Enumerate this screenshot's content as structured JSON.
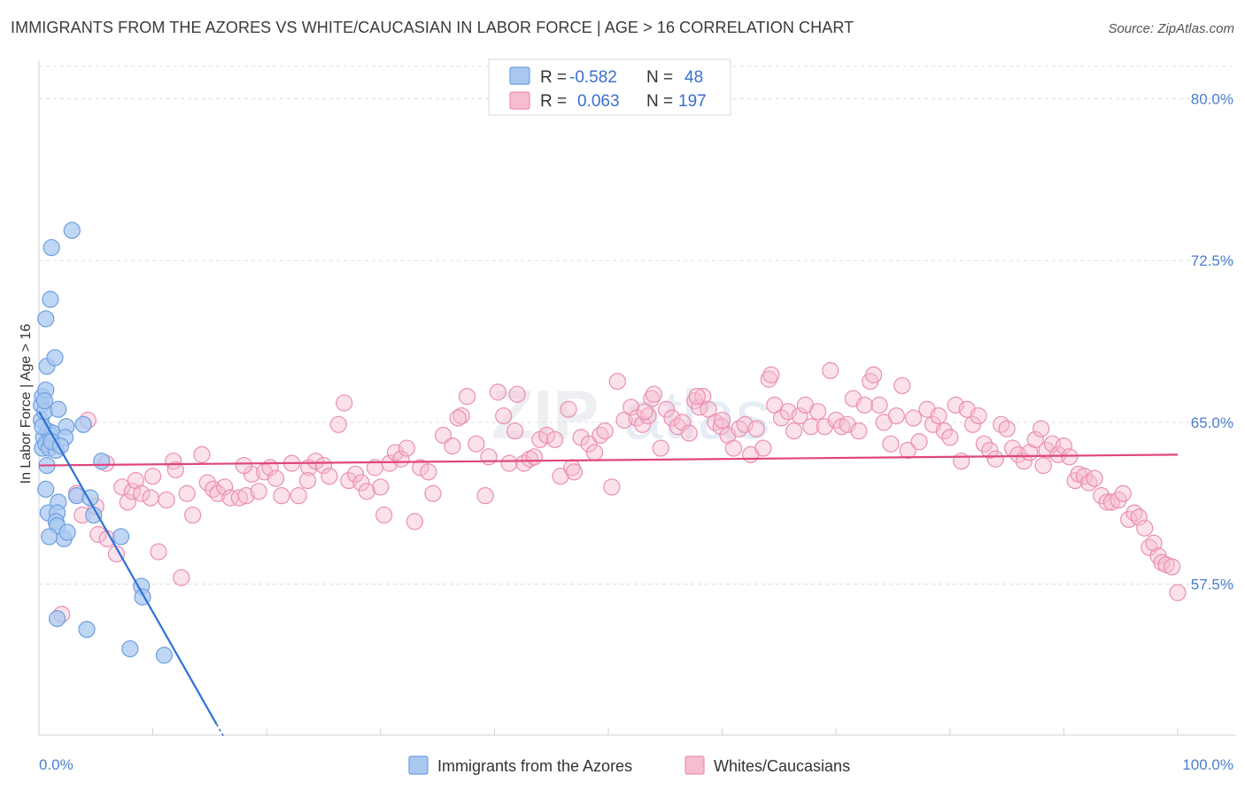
{
  "header": {
    "title": "IMMIGRANTS FROM THE AZORES VS WHITE/CAUCASIAN IN LABOR FORCE | AGE > 16 CORRELATION CHART",
    "source": "Source: ZipAtlas.com"
  },
  "watermark": {
    "zip": "ZIP",
    "atlas": "atlas"
  },
  "colors": {
    "blue_fill": "#a9c8f0",
    "blue_stroke": "#6d9fe0",
    "blue_line": "#2f6fd6",
    "pink_fill": "#f7bcd0",
    "pink_stroke": "#ea8fb0",
    "pink_line": "#e0457b",
    "grid": "#d9dde3",
    "axis_text": "#4a7fd0"
  },
  "chart_data": {
    "type": "scatter",
    "title": "IMMIGRANTS FROM THE AZORES VS WHITE/CAUCASIAN IN LABOR FORCE | AGE > 16 CORRELATION CHART",
    "ylabel": "In Labor Force | Age > 16",
    "xlim": [
      0,
      100
    ],
    "ylim": [
      50.5,
      81.5
    ],
    "x_tick_labels": [
      "0.0%",
      "100.0%"
    ],
    "y_ticks": [
      57.5,
      65.0,
      72.5,
      80.0
    ],
    "y_tick_labels": [
      "57.5%",
      "65.0%",
      "72.5%",
      "80.0%"
    ],
    "legend": {
      "rows": [
        {
          "r_label": "R =",
          "r": "-0.582",
          "n_label": "N =",
          "n": "48"
        },
        {
          "r_label": "R =",
          "r": "0.063",
          "n_label": "N =",
          "n": "197"
        }
      ]
    },
    "series": [
      {
        "name": "Immigrants from the Azores",
        "trend": {
          "x": [
            0.0,
            15.6
          ],
          "y": [
            65.5,
            51.0
          ],
          "dash_to_x": 16.2
        },
        "points": [
          [
            0.2,
            65.8
          ],
          [
            0.3,
            66.2
          ],
          [
            0.2,
            65.1
          ],
          [
            0.4,
            64.3
          ],
          [
            0.3,
            63.8
          ],
          [
            0.5,
            65.5
          ],
          [
            0.8,
            64.6
          ],
          [
            0.6,
            64.0
          ],
          [
            1.0,
            64.4
          ],
          [
            0.9,
            63.8
          ],
          [
            1.2,
            64.5
          ],
          [
            1.5,
            63.7
          ],
          [
            0.7,
            63.0
          ],
          [
            0.6,
            66.5
          ],
          [
            0.5,
            66.0
          ],
          [
            0.7,
            67.6
          ],
          [
            0.6,
            69.8
          ],
          [
            1.4,
            68.0
          ],
          [
            1.0,
            70.7
          ],
          [
            1.1,
            73.1
          ],
          [
            2.9,
            73.9
          ],
          [
            1.7,
            65.6
          ],
          [
            2.4,
            64.8
          ],
          [
            2.3,
            64.3
          ],
          [
            3.9,
            64.9
          ],
          [
            5.5,
            63.2
          ],
          [
            0.6,
            61.9
          ],
          [
            0.8,
            60.8
          ],
          [
            1.7,
            61.3
          ],
          [
            1.6,
            60.8
          ],
          [
            1.5,
            60.4
          ],
          [
            1.6,
            60.2
          ],
          [
            2.2,
            59.6
          ],
          [
            2.5,
            59.9
          ],
          [
            0.9,
            59.7
          ],
          [
            3.3,
            61.6
          ],
          [
            4.5,
            61.5
          ],
          [
            4.8,
            60.7
          ],
          [
            7.2,
            59.7
          ],
          [
            9.0,
            57.4
          ],
          [
            9.1,
            56.9
          ],
          [
            1.6,
            55.9
          ],
          [
            4.2,
            55.4
          ],
          [
            8.0,
            54.5
          ],
          [
            11.0,
            54.2
          ],
          [
            0.3,
            64.8
          ],
          [
            1.1,
            64.1
          ],
          [
            1.9,
            63.9
          ]
        ]
      },
      {
        "name": "Whites/Caucasians",
        "trend": {
          "x": [
            0.0,
            100.0
          ],
          "y": [
            63.0,
            63.5
          ]
        },
        "points": [
          [
            2.0,
            56.1
          ],
          [
            3.3,
            61.7
          ],
          [
            3.8,
            60.7
          ],
          [
            4.3,
            65.1
          ],
          [
            5.0,
            61.1
          ],
          [
            5.2,
            59.8
          ],
          [
            5.9,
            63.1
          ],
          [
            6.0,
            59.6
          ],
          [
            6.8,
            58.9
          ],
          [
            7.3,
            62.0
          ],
          [
            7.8,
            61.3
          ],
          [
            8.2,
            61.8
          ],
          [
            8.5,
            62.3
          ],
          [
            9.0,
            61.7
          ],
          [
            9.8,
            61.5
          ],
          [
            10.5,
            59.0
          ],
          [
            11.2,
            61.4
          ],
          [
            11.8,
            63.2
          ],
          [
            12.5,
            57.8
          ],
          [
            13.0,
            61.7
          ],
          [
            13.5,
            60.7
          ],
          [
            14.3,
            63.5
          ],
          [
            14.8,
            62.2
          ],
          [
            15.3,
            61.9
          ],
          [
            15.7,
            61.7
          ],
          [
            16.3,
            62.0
          ],
          [
            16.8,
            61.5
          ],
          [
            17.6,
            61.5
          ],
          [
            18.2,
            61.6
          ],
          [
            18.7,
            62.6
          ],
          [
            19.3,
            61.8
          ],
          [
            19.8,
            62.7
          ],
          [
            20.3,
            62.9
          ],
          [
            20.8,
            62.4
          ],
          [
            21.3,
            61.6
          ],
          [
            22.2,
            63.1
          ],
          [
            22.8,
            61.6
          ],
          [
            23.7,
            62.9
          ],
          [
            24.3,
            63.2
          ],
          [
            25.0,
            63.0
          ],
          [
            25.5,
            62.5
          ],
          [
            26.3,
            64.9
          ],
          [
            26.8,
            65.9
          ],
          [
            27.2,
            62.3
          ],
          [
            27.8,
            62.6
          ],
          [
            28.3,
            62.2
          ],
          [
            28.8,
            61.8
          ],
          [
            29.5,
            62.9
          ],
          [
            30.3,
            60.7
          ],
          [
            30.8,
            63.1
          ],
          [
            31.3,
            63.6
          ],
          [
            31.8,
            63.3
          ],
          [
            32.3,
            63.8
          ],
          [
            33.0,
            60.4
          ],
          [
            33.5,
            62.9
          ],
          [
            34.2,
            62.7
          ],
          [
            34.6,
            61.7
          ],
          [
            35.5,
            64.4
          ],
          [
            36.3,
            63.9
          ],
          [
            37.1,
            65.3
          ],
          [
            37.6,
            66.2
          ],
          [
            38.4,
            64.0
          ],
          [
            39.2,
            61.6
          ],
          [
            39.5,
            63.4
          ],
          [
            40.3,
            66.4
          ],
          [
            40.8,
            65.3
          ],
          [
            41.3,
            63.1
          ],
          [
            41.8,
            64.6
          ],
          [
            42.6,
            63.1
          ],
          [
            43.1,
            63.3
          ],
          [
            43.5,
            63.4
          ],
          [
            44.0,
            64.2
          ],
          [
            44.6,
            64.4
          ],
          [
            45.3,
            64.2
          ],
          [
            45.8,
            62.5
          ],
          [
            46.5,
            65.6
          ],
          [
            46.8,
            62.9
          ],
          [
            47.0,
            62.7
          ],
          [
            47.6,
            64.3
          ],
          [
            48.3,
            64.0
          ],
          [
            48.8,
            63.6
          ],
          [
            49.3,
            64.4
          ],
          [
            49.7,
            64.6
          ],
          [
            50.3,
            62.0
          ],
          [
            50.8,
            66.9
          ],
          [
            51.4,
            65.1
          ],
          [
            52.0,
            65.7
          ],
          [
            52.5,
            65.2
          ],
          [
            53.0,
            64.9
          ],
          [
            53.5,
            65.3
          ],
          [
            53.8,
            66.1
          ],
          [
            54.0,
            66.3
          ],
          [
            54.6,
            63.8
          ],
          [
            55.1,
            65.6
          ],
          [
            55.6,
            65.2
          ],
          [
            56.1,
            64.8
          ],
          [
            56.5,
            65.0
          ],
          [
            57.1,
            64.5
          ],
          [
            57.6,
            66.0
          ],
          [
            58.0,
            65.7
          ],
          [
            58.3,
            66.2
          ],
          [
            58.8,
            65.6
          ],
          [
            59.4,
            65.0
          ],
          [
            59.9,
            64.8
          ],
          [
            60.5,
            64.4
          ],
          [
            61.0,
            63.8
          ],
          [
            61.5,
            64.7
          ],
          [
            62.0,
            64.9
          ],
          [
            62.5,
            63.5
          ],
          [
            63.0,
            64.7
          ],
          [
            63.6,
            63.8
          ],
          [
            64.1,
            67.0
          ],
          [
            64.6,
            65.8
          ],
          [
            65.2,
            65.2
          ],
          [
            65.8,
            65.5
          ],
          [
            66.3,
            64.6
          ],
          [
            66.8,
            65.3
          ],
          [
            67.3,
            65.8
          ],
          [
            67.8,
            64.8
          ],
          [
            68.4,
            65.5
          ],
          [
            69.0,
            64.8
          ],
          [
            69.5,
            67.4
          ],
          [
            70.0,
            65.1
          ],
          [
            70.5,
            64.8
          ],
          [
            71.0,
            64.9
          ],
          [
            71.5,
            66.1
          ],
          [
            72.0,
            64.6
          ],
          [
            72.5,
            65.8
          ],
          [
            73.0,
            66.9
          ],
          [
            73.3,
            67.2
          ],
          [
            73.8,
            65.8
          ],
          [
            74.2,
            65.0
          ],
          [
            74.8,
            64.0
          ],
          [
            75.3,
            65.3
          ],
          [
            75.8,
            66.7
          ],
          [
            76.3,
            63.7
          ],
          [
            76.8,
            65.2
          ],
          [
            77.3,
            64.1
          ],
          [
            78.0,
            65.6
          ],
          [
            78.5,
            64.9
          ],
          [
            79.0,
            65.3
          ],
          [
            79.5,
            64.6
          ],
          [
            80.0,
            64.3
          ],
          [
            80.5,
            65.8
          ],
          [
            81.0,
            63.2
          ],
          [
            81.5,
            65.6
          ],
          [
            82.0,
            64.9
          ],
          [
            82.5,
            65.3
          ],
          [
            83.0,
            64.0
          ],
          [
            83.5,
            63.7
          ],
          [
            84.0,
            63.3
          ],
          [
            84.5,
            64.9
          ],
          [
            85.0,
            64.7
          ],
          [
            85.5,
            63.8
          ],
          [
            86.0,
            63.5
          ],
          [
            86.5,
            63.2
          ],
          [
            87.0,
            63.6
          ],
          [
            87.5,
            64.2
          ],
          [
            88.0,
            64.7
          ],
          [
            88.5,
            63.7
          ],
          [
            89.0,
            64.0
          ],
          [
            89.5,
            63.5
          ],
          [
            90.0,
            63.9
          ],
          [
            90.5,
            63.4
          ],
          [
            91.0,
            62.3
          ],
          [
            91.3,
            62.6
          ],
          [
            91.8,
            62.5
          ],
          [
            92.2,
            62.2
          ],
          [
            92.7,
            62.4
          ],
          [
            93.3,
            61.6
          ],
          [
            93.8,
            61.3
          ],
          [
            94.2,
            61.3
          ],
          [
            94.8,
            61.4
          ],
          [
            95.2,
            61.7
          ],
          [
            95.7,
            60.5
          ],
          [
            96.2,
            60.8
          ],
          [
            96.6,
            60.6
          ],
          [
            97.1,
            60.1
          ],
          [
            97.5,
            59.2
          ],
          [
            97.9,
            59.4
          ],
          [
            98.3,
            58.8
          ],
          [
            98.6,
            58.5
          ],
          [
            99.0,
            58.4
          ],
          [
            99.5,
            58.3
          ],
          [
            100.0,
            57.1
          ],
          [
            64.3,
            67.2
          ],
          [
            57.8,
            66.2
          ],
          [
            42.0,
            66.3
          ],
          [
            36.8,
            65.2
          ],
          [
            23.6,
            62.3
          ],
          [
            30.0,
            62.0
          ],
          [
            18.0,
            63.0
          ],
          [
            12.0,
            62.8
          ],
          [
            10.0,
            62.5
          ],
          [
            88.2,
            63.0
          ],
          [
            60.0,
            65.1
          ],
          [
            53.2,
            65.5
          ]
        ]
      }
    ]
  },
  "bottom_legend": {
    "items": [
      {
        "label": "Immigrants from the Azores"
      },
      {
        "label": "Whites/Caucasians"
      }
    ]
  }
}
